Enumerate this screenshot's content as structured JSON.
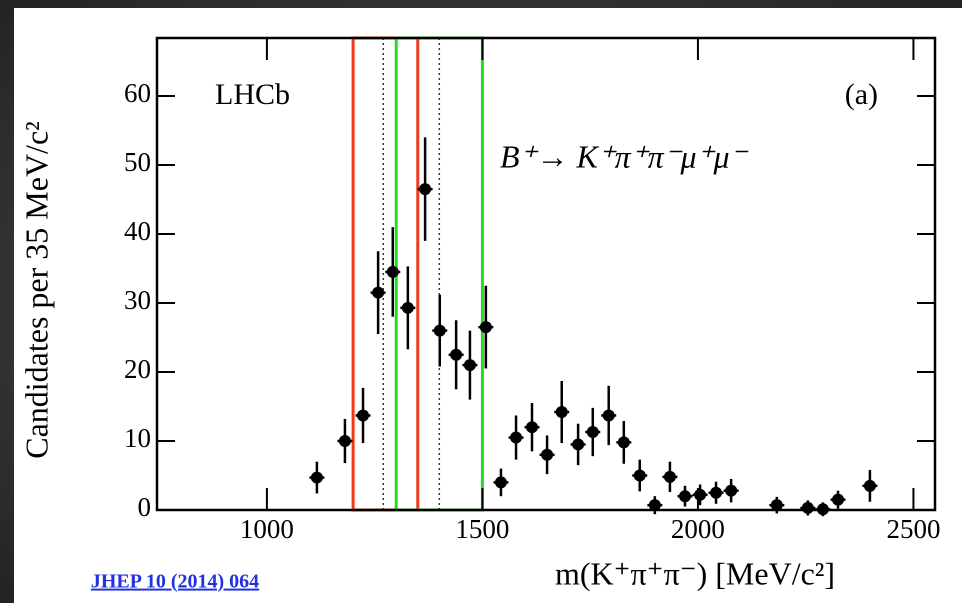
{
  "chart_data": {
    "type": "errorbar",
    "x_label": "m(K⁺π⁺π⁻) [MeV/c²]",
    "y_label": "Candidates per 35 MeV/c²",
    "annotations": [
      "LHCb",
      "(a)",
      "B⁺→ K⁺π⁺π⁻μ⁺μ⁻"
    ],
    "reference": "JHEP 10 (2014) 064",
    "xlim": [
      745,
      2550
    ],
    "ylim": [
      0,
      68.4
    ],
    "xticks": [
      1000,
      1500,
      2000,
      2500
    ],
    "yticks": [
      0,
      10,
      20,
      30,
      40,
      50,
      60
    ],
    "regions": [
      {
        "xlim": [
          1200,
          1350
        ],
        "color": "#ee3a1c"
      },
      {
        "xlim": [
          1300,
          1500
        ],
        "color": "#22dd22"
      }
    ],
    "reference_lines": [
      1270,
      1400
    ],
    "series": [
      {
        "color": "#000000",
        "x": [
          1116,
          1181,
          1223,
          1258,
          1292,
          1327,
          1367,
          1401,
          1439,
          1471,
          1508,
          1543,
          1578,
          1615,
          1650,
          1684,
          1722,
          1756,
          1793,
          1828,
          1865,
          1900,
          1935,
          1970,
          2005,
          2042,
          2077,
          2183,
          2255,
          2290,
          2325,
          2399
        ],
        "values": [
          4.7,
          10,
          13.7,
          31.5,
          34.5,
          29.3,
          46.5,
          26,
          22.5,
          21,
          26.5,
          4,
          10.5,
          12,
          8,
          14.2,
          9.5,
          11.3,
          13.7,
          9.8,
          5,
          0.7,
          4.8,
          2,
          2.2,
          2.5,
          2.8,
          0.7,
          0.3,
          0.1,
          1.5,
          3.5
        ],
        "errors": [
          2.3,
          3.2,
          4,
          6,
          6.5,
          6,
          7.5,
          5.2,
          5,
          5,
          6,
          2,
          3.2,
          3.5,
          2.8,
          4.5,
          3,
          3.5,
          4.3,
          3.1,
          2.3,
          1.3,
          2.2,
          1.5,
          1.5,
          1.6,
          1.7,
          1.2,
          1.1,
          1,
          1.3,
          2.3
        ]
      }
    ]
  }
}
